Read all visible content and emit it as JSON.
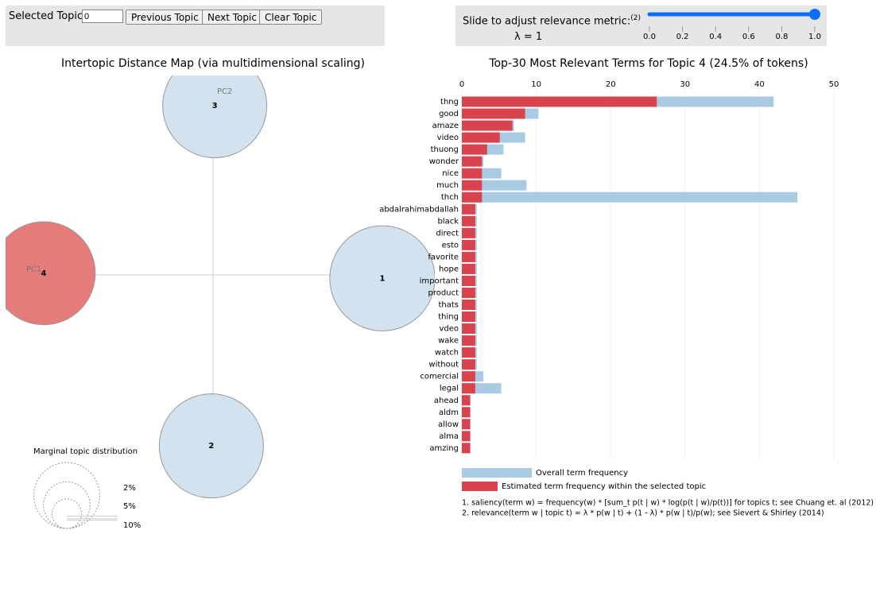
{
  "controls": {
    "selected_topic_label": "Selected Topic:",
    "selected_topic_value": "0",
    "buttons": [
      "Previous Topic",
      "Next Topic",
      "Clear Topic"
    ],
    "slider_label": "Slide to adjust relevance metric:",
    "slider_note": "(2)",
    "lambda_label": "λ = 1",
    "lambda": 1,
    "slider_ticks": [
      {
        "value": 0,
        "label": "0.0"
      },
      0.2,
      0.4,
      0.6,
      0.8,
      {
        "value": 1,
        "label": "1.0"
      }
    ]
  },
  "intertopic_map": {
    "title": "Intertopic Distance Map (via multidimensional scaling)",
    "pc1": "PC1",
    "pc2": "PC2",
    "topics": [
      {
        "label": "1",
        "x": 1.0,
        "y": -0.02,
        "size": 25.5,
        "color": "#d2e3ef"
      },
      {
        "label": "2",
        "x": -0.01,
        "y": -1.01,
        "size": 25,
        "color": "#d2e3ef"
      },
      {
        "label": "3",
        "x": 0.01,
        "y": 1.0,
        "size": 25,
        "color": "#d2e3ef"
      },
      {
        "label": "4",
        "x": -1.0,
        "y": 0.01,
        "size": 24.5,
        "color": "#e67b7c"
      }
    ],
    "legend_title": "Marginal topic distribution",
    "legend_sizes": [
      {
        "value": 2,
        "label": "2%"
      },
      {
        "value": 5,
        "label": "5%"
      },
      {
        "value": 10,
        "label": "10%"
      }
    ]
  },
  "chart_data": {
    "type": "bar",
    "title": "Top-30 Most Relevant Terms for Topic 4 (24.5% of tokens)",
    "categories": [
      "thng",
      "good",
      "amaze",
      "video",
      "thuong",
      "wonder",
      "nice",
      "much",
      "thch",
      "abdalrahimabdallah",
      "black",
      "direct",
      "esto",
      "favorite",
      "hope",
      "important",
      "product",
      "thats",
      "thing",
      "vdeo",
      "wake",
      "watch",
      "without",
      "comercial",
      "legal",
      "ahead",
      "aldm",
      "allow",
      "alma",
      "amzing"
    ],
    "series": [
      {
        "name": "Overall term frequency",
        "color": "#a9cae3",
        "values": [
          41.9,
          10.3,
          7.0,
          8.5,
          5.6,
          2.9,
          5.3,
          8.7,
          45.1,
          2.0,
          2.0,
          2.0,
          2.0,
          2.0,
          2.0,
          2.0,
          2.0,
          2.0,
          2.0,
          2.0,
          2.0,
          2.0,
          2.0,
          2.9,
          5.3,
          1.2,
          1.2,
          1.2,
          1.2,
          1.2
        ]
      },
      {
        "name": "Estimated term frequency within the selected topic",
        "color": "#d9434e",
        "values": [
          26.2,
          8.5,
          6.8,
          5.1,
          3.4,
          2.7,
          2.7,
          2.7,
          2.7,
          1.8,
          1.8,
          1.8,
          1.8,
          1.8,
          1.8,
          1.8,
          1.8,
          1.8,
          1.8,
          1.8,
          1.8,
          1.8,
          1.8,
          1.8,
          1.8,
          1.1,
          1.1,
          1.1,
          1.1,
          1.1
        ]
      }
    ],
    "xlim": [
      0,
      50
    ],
    "xticks": [
      0,
      10,
      20,
      30,
      40,
      50
    ],
    "notes": [
      "1. saliency(term w) = frequency(w) * [sum_t p(t | w) * log(p(t | w)/p(t))] for topics t; see Chuang et. al (2012)",
      "2. relevance(term w | topic t) = λ * p(w | t) + (1 - λ) * p(w | t)/p(w); see Sievert & Shirley (2014)"
    ]
  }
}
